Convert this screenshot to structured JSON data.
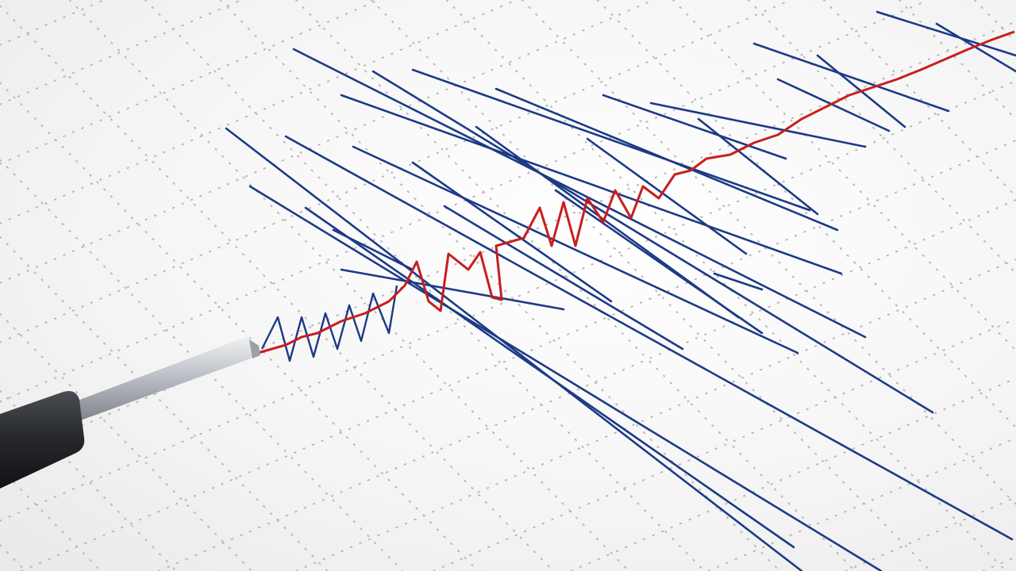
{
  "scene": {
    "subject": "seismograph-trace",
    "colors": {
      "paper": "#f7f7f7",
      "grid_dots": "#b9b9b9",
      "trace_blue": "#1c3a86",
      "trace_red": "#c81e1e",
      "pen_body": "#2a2c30",
      "pen_shaft": "#c9ccd0"
    }
  }
}
